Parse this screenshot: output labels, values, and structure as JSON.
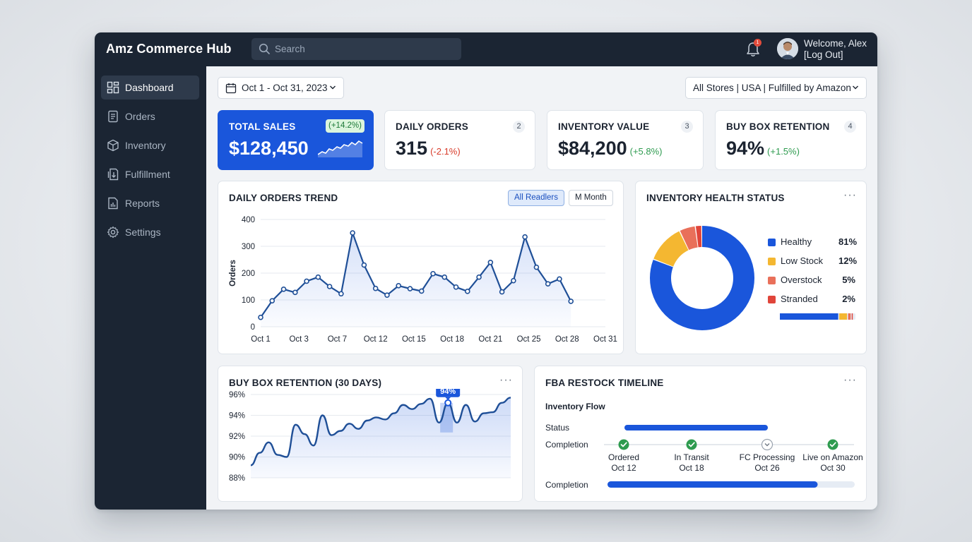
{
  "app": {
    "title": "Amz Commerce Hub"
  },
  "search": {
    "placeholder": "Search"
  },
  "notifications": {
    "count": "1"
  },
  "user": {
    "welcome": "Welcome, Alex",
    "logout": "[Log Out]"
  },
  "sidebar": {
    "items": [
      {
        "label": "Dashboard",
        "icon": "dashboard-icon",
        "active": true
      },
      {
        "label": "Orders",
        "icon": "orders-icon"
      },
      {
        "label": "Inventory",
        "icon": "inventory-icon"
      },
      {
        "label": "Fulfillment",
        "icon": "fulfillment-icon"
      },
      {
        "label": "Reports",
        "icon": "reports-icon"
      },
      {
        "label": "Settings",
        "icon": "settings-icon"
      }
    ]
  },
  "filters": {
    "date_range": "Oct 1 - Oct 31, 2023",
    "store_filter": "All Stores | USA | Fulfilled by Amazon"
  },
  "kpis": [
    {
      "title": "TOTAL SALES",
      "value": "$128,450",
      "delta": "(+14.2%)",
      "badge": "",
      "trend": "up"
    },
    {
      "title": "DAILY ORDERS",
      "value": "315",
      "delta": "(-2.1%)",
      "badge": "2",
      "trend": "down"
    },
    {
      "title": "INVENTORY VALUE",
      "value": "$84,200",
      "delta": "(+5.8%)",
      "badge": "3",
      "trend": "up"
    },
    {
      "title": "BUY BOX RETENTION",
      "value": "94%",
      "delta": "(+1.5%)",
      "badge": "4",
      "trend": "up"
    }
  ],
  "orders_trend": {
    "title": "DAILY ORDERS TREND",
    "toggle_all": "All Readlers",
    "toggle_month": "M Month"
  },
  "inventory_health": {
    "title": "INVENTORY HEALTH STATUS",
    "legend": [
      {
        "label": "Healthy",
        "pct": "81%"
      },
      {
        "label": "Low Stock",
        "pct": "12%"
      },
      {
        "label": "Overstock",
        "pct": "5%"
      },
      {
        "label": "Stranded",
        "pct": "2%"
      }
    ]
  },
  "buybox": {
    "title": "BUY BOX RETENTION (30 DAYS)",
    "callout": "94%"
  },
  "restock": {
    "title": "FBA RESTOCK TIMELINE",
    "subtitle": "Inventory Flow",
    "status_label": "Status",
    "completion_label": "Completion",
    "completion_label_2": "Completion",
    "completion_progress": 0.85,
    "status_progress": 0.4,
    "steps": [
      {
        "name": "Ordered",
        "date": "Oct 12",
        "state": "done"
      },
      {
        "name": "In Transit",
        "date": "Oct 18",
        "state": "done"
      },
      {
        "name": "FC Processing",
        "date": "Oct 26",
        "state": "pending"
      },
      {
        "name": "Live on Amazon",
        "date": "Oct 30",
        "state": "done"
      }
    ]
  },
  "colors": {
    "primary": "#1a56db",
    "navy": "#1b2533",
    "healthy": "#1a56db",
    "low_stock": "#f4b731",
    "overstock": "#e9705a",
    "stranded": "#e0453a",
    "positive": "#2e9b4f",
    "negative": "#d83b2a"
  },
  "chart_data": [
    {
      "type": "line",
      "title": "DAILY ORDERS TREND",
      "ylabel": "Orders",
      "xlabel": "",
      "ylim": [
        0,
        400
      ],
      "yticks": [
        0,
        100,
        200,
        300,
        400
      ],
      "xtick_labels": [
        "Oct 1",
        "Oct 3",
        "Oct 7",
        "Oct 12",
        "Oct 15",
        "Oct 18",
        "Oct 21",
        "Oct 25",
        "Oct 28",
        "Oct 31"
      ],
      "grid": true,
      "x": [
        1,
        2,
        3,
        4,
        5,
        6,
        7,
        8,
        9,
        10,
        11,
        12,
        13,
        14,
        15,
        16,
        17,
        18,
        19,
        20,
        21,
        22,
        23,
        24,
        25,
        26,
        27,
        28,
        29,
        30,
        31
      ],
      "series": [
        {
          "values": [
            35,
            97,
            140,
            128,
            170,
            185,
            150,
            123,
            350,
            230,
            143,
            118,
            153,
            142,
            133,
            198,
            185,
            148,
            132,
            185,
            240,
            130,
            172,
            335,
            222,
            160,
            178,
            95,
            95,
            95,
            95
          ]
        }
      ]
    },
    {
      "type": "pie",
      "title": "INVENTORY HEALTH STATUS",
      "categories": [
        "Healthy",
        "Low Stock",
        "Overstock",
        "Stranded"
      ],
      "values": [
        81,
        12,
        5,
        2
      ],
      "legend": "right"
    },
    {
      "type": "area",
      "title": "BUY BOX RETENTION (30 DAYS)",
      "ylim": [
        88,
        96
      ],
      "yticks": [
        "88%",
        "90%",
        "92%",
        "94%",
        "96%"
      ],
      "grid": true,
      "annotation": {
        "label": "94%",
        "x": 23
      },
      "x": [
        1,
        2,
        3,
        4,
        5,
        6,
        7,
        8,
        9,
        10,
        11,
        12,
        13,
        14,
        15,
        16,
        17,
        18,
        19,
        20,
        21,
        22,
        23,
        24,
        25,
        26,
        27,
        28,
        29,
        30
      ],
      "series": [
        {
          "values": [
            89.2,
            90.4,
            91.4,
            90.2,
            90.0,
            93.1,
            92.2,
            91.1,
            94.0,
            92.1,
            92.5,
            93.2,
            92.7,
            93.5,
            93.8,
            93.6,
            94.2,
            95.0,
            94.6,
            95.1,
            95.6,
            93.3,
            95.2,
            93.3,
            95.0,
            93.4,
            94.2,
            94.3,
            95.2,
            95.7
          ]
        }
      ]
    }
  ]
}
